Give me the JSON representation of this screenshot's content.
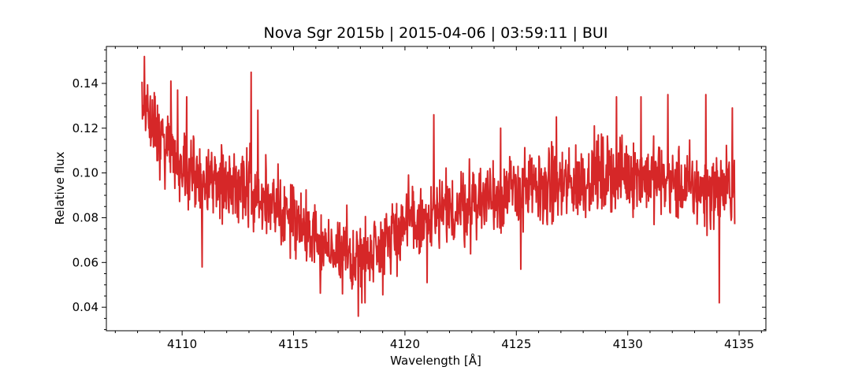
{
  "chart_data": {
    "type": "line",
    "title": "Nova Sgr 2015b | 2015-04-06 | 03:59:11 | BUI",
    "xlabel": "Wavelength [Å]",
    "ylabel": "Relative flux",
    "xlim": [
      4106.6,
      4136.2
    ],
    "ylim": [
      0.0295,
      0.1565
    ],
    "x_ticks": [
      4110,
      4115,
      4120,
      4125,
      4130,
      4135
    ],
    "y_ticks": [
      0.04,
      0.06,
      0.08,
      0.1,
      0.12,
      0.14
    ],
    "x_tick_labels": [
      "4110",
      "4115",
      "4120",
      "4125",
      "4130",
      "4135"
    ],
    "y_tick_labels": [
      "0.04",
      "0.06",
      "0.08",
      "0.10",
      "0.12",
      "0.14"
    ],
    "grid": false,
    "legend": "none",
    "series": [
      {
        "color": "#d62728",
        "x_range": [
          4108.2,
          4134.8
        ],
        "trend": [
          [
            4108.2,
            0.128
          ],
          [
            4109,
            0.117
          ],
          [
            4110,
            0.103
          ],
          [
            4111,
            0.098
          ],
          [
            4112,
            0.096
          ],
          [
            4113,
            0.093
          ],
          [
            4114,
            0.086
          ],
          [
            4115,
            0.08
          ],
          [
            4116,
            0.07
          ],
          [
            4117,
            0.063
          ],
          [
            4118,
            0.062
          ],
          [
            4119,
            0.07
          ],
          [
            4120,
            0.077
          ],
          [
            4121,
            0.078
          ],
          [
            4122,
            0.082
          ],
          [
            4123,
            0.087
          ],
          [
            4124,
            0.09
          ],
          [
            4125,
            0.092
          ],
          [
            4126,
            0.093
          ],
          [
            4127,
            0.094
          ],
          [
            4128,
            0.097
          ],
          [
            4129,
            0.099
          ],
          [
            4130,
            0.1
          ],
          [
            4131,
            0.098
          ],
          [
            4132,
            0.095
          ],
          [
            4133,
            0.093
          ],
          [
            4134,
            0.092
          ],
          [
            4134.8,
            0.094
          ]
        ],
        "noise_amplitude": 0.015,
        "spikes": [
          [
            4108.3,
            0.152
          ],
          [
            4108.5,
            0.12
          ],
          [
            4109.5,
            0.141
          ],
          [
            4109.8,
            0.137
          ],
          [
            4110.2,
            0.134
          ],
          [
            4110.9,
            0.058
          ],
          [
            4113.1,
            0.145
          ],
          [
            4113.4,
            0.128
          ],
          [
            4117.2,
            0.046
          ],
          [
            4117.9,
            0.036
          ],
          [
            4118.2,
            0.042
          ],
          [
            4121.0,
            0.051
          ],
          [
            4121.3,
            0.126
          ],
          [
            4124.3,
            0.12
          ],
          [
            4125.2,
            0.057
          ],
          [
            4126.8,
            0.125
          ],
          [
            4128.5,
            0.121
          ],
          [
            4129.5,
            0.134
          ],
          [
            4130.6,
            0.134
          ],
          [
            4131.8,
            0.135
          ],
          [
            4133.5,
            0.135
          ],
          [
            4134.1,
            0.042
          ],
          [
            4134.7,
            0.129
          ]
        ]
      }
    ]
  }
}
